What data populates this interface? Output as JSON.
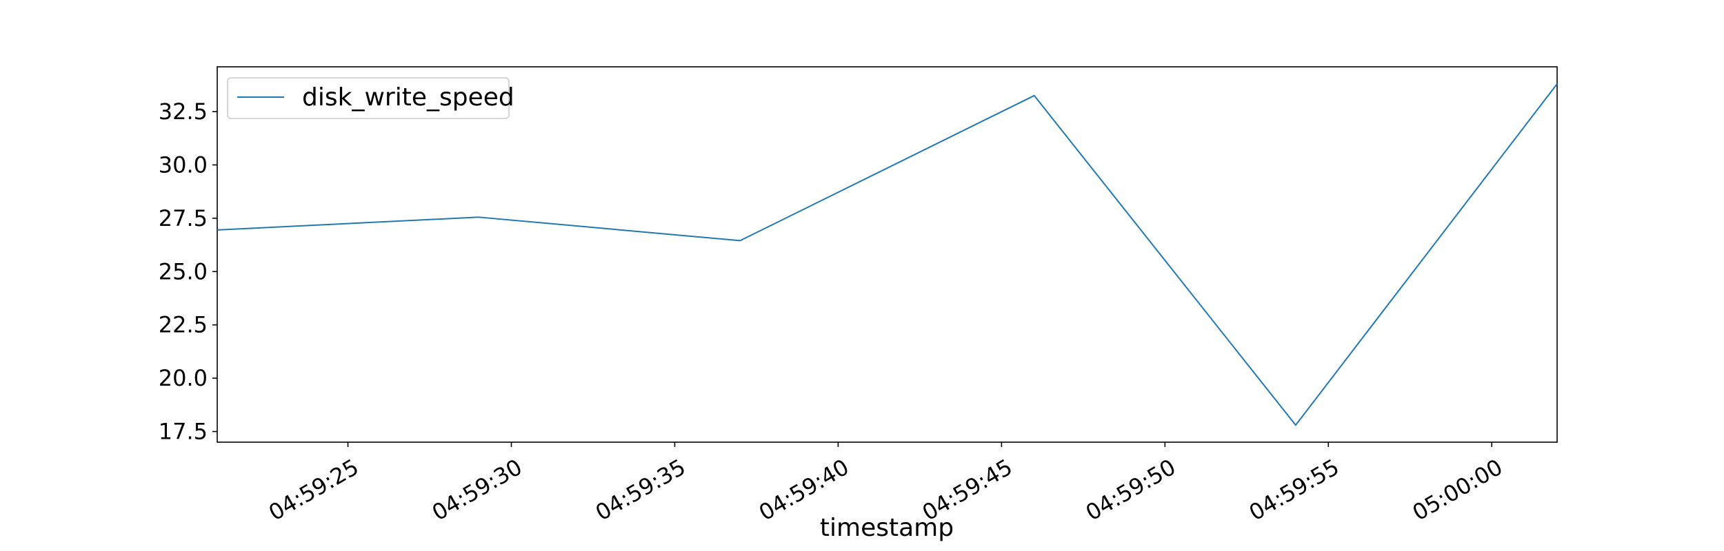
{
  "chart_data": {
    "type": "line",
    "title": "",
    "xlabel": "timestamp",
    "ylabel": "",
    "x": [
      "04:59:21",
      "04:59:29",
      "04:59:37",
      "04:59:46",
      "04:59:54",
      "05:00:02"
    ],
    "series": [
      {
        "name": "disk_write_speed",
        "color": "#1f77b4",
        "values": [
          26.95,
          27.55,
          26.45,
          33.25,
          17.8,
          33.8
        ]
      }
    ],
    "xlim": [
      "04:59:21",
      "05:00:02"
    ],
    "ylim": [
      17.0,
      34.6
    ],
    "x_ticks": [
      "04:59:25",
      "04:59:30",
      "04:59:35",
      "04:59:40",
      "04:59:45",
      "04:59:50",
      "04:59:55",
      "05:00:00"
    ],
    "y_ticks": [
      17.5,
      20.0,
      22.5,
      25.0,
      27.5,
      30.0,
      32.5
    ],
    "grid": false,
    "legend_position": "top-left"
  }
}
